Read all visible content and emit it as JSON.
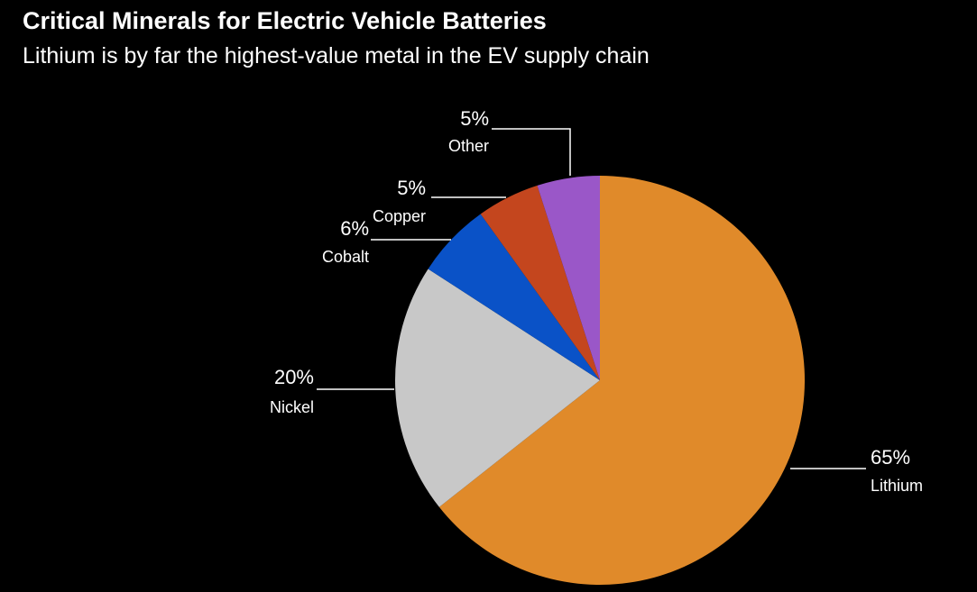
{
  "chart_data": {
    "type": "pie",
    "title": "Critical Minerals for Electric Vehicle Batteries",
    "subtitle": "Lithium is by far the highest-value metal in the EV supply chain",
    "slices": [
      {
        "key": "lithium",
        "name": "Lithium",
        "value": 65,
        "value_label": "65%",
        "color": "#e08a2a"
      },
      {
        "key": "nickel",
        "name": "Nickel",
        "value": 20,
        "value_label": "20%",
        "color": "#c8c8c8"
      },
      {
        "key": "cobalt",
        "name": "Cobalt",
        "value": 6,
        "value_label": "6%",
        "color": "#0a52c7"
      },
      {
        "key": "copper",
        "name": "Copper",
        "value": 5,
        "value_label": "5%",
        "color": "#c4461e"
      },
      {
        "key": "other",
        "name": "Other",
        "value": 5,
        "value_label": "5%",
        "color": "#9a57c8"
      }
    ]
  }
}
